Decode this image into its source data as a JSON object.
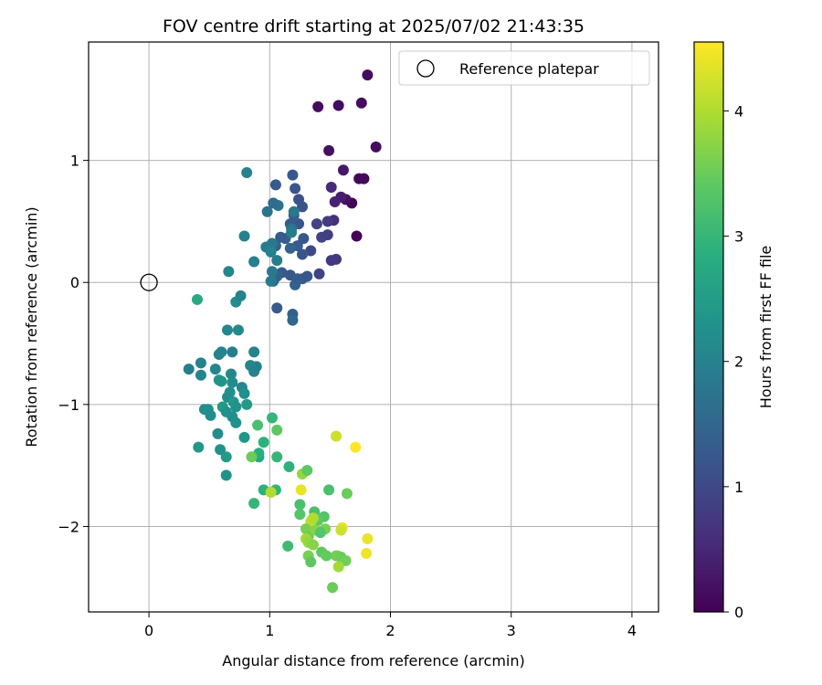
{
  "chart_data": {
    "type": "scatter",
    "title": "FOV centre drift starting at 2025/07/02 21:43:35",
    "xlabel": "Angular distance from reference (arcmin)",
    "ylabel": "Rotation from reference (arcmin)",
    "xlim": [
      -0.5,
      4.22
    ],
    "ylim": [
      -2.7,
      1.97
    ],
    "xticks": [
      0,
      1,
      2,
      3,
      4
    ],
    "yticks": [
      -2,
      -1,
      0,
      1
    ],
    "grid": true,
    "colormap": "viridis",
    "colorbar": {
      "label": "Hours from first FF file",
      "range": [
        0,
        4.55
      ],
      "ticks": [
        0,
        1,
        2,
        3,
        4
      ]
    },
    "legend": {
      "placement": "top-right",
      "entries": [
        {
          "label": "Reference platepar",
          "marker": "open-circle"
        }
      ]
    },
    "reference_point": {
      "x": 0,
      "y": 0
    },
    "series": [
      {
        "points": [
          [
            1.81,
            1.7,
            0.15
          ],
          [
            1.76,
            1.47,
            0.15
          ],
          [
            1.4,
            1.44,
            0.15
          ],
          [
            1.57,
            1.45,
            0.15
          ],
          [
            1.88,
            1.11,
            0.15
          ],
          [
            1.49,
            1.08,
            0.2
          ],
          [
            1.61,
            0.92,
            0.3
          ],
          [
            1.74,
            0.85,
            0.1
          ],
          [
            1.78,
            0.85,
            0.1
          ],
          [
            1.68,
            0.65,
            0.05
          ],
          [
            1.63,
            0.68,
            0.2
          ],
          [
            1.59,
            0.7,
            0.35
          ],
          [
            1.51,
            0.78,
            0.55
          ],
          [
            1.54,
            0.66,
            0.45
          ],
          [
            1.72,
            0.38,
            0.05
          ],
          [
            1.53,
            0.51,
            0.6
          ],
          [
            1.48,
            0.5,
            0.8
          ],
          [
            1.39,
            0.48,
            0.9
          ],
          [
            1.43,
            0.37,
            0.9
          ],
          [
            1.48,
            0.39,
            0.85
          ],
          [
            1.55,
            0.19,
            0.7
          ],
          [
            1.51,
            0.18,
            0.75
          ],
          [
            1.41,
            0.07,
            0.9
          ],
          [
            1.34,
            0.26,
            1.0
          ],
          [
            1.24,
            0.68,
            1.1
          ],
          [
            1.21,
            0.77,
            1.2
          ],
          [
            1.19,
            0.88,
            1.25
          ],
          [
            1.05,
            0.8,
            1.3
          ],
          [
            1.27,
            0.62,
            1.15
          ],
          [
            1.24,
            0.48,
            1.2
          ],
          [
            1.17,
            0.48,
            1.3
          ],
          [
            1.2,
            0.55,
            1.35
          ],
          [
            1.28,
            0.36,
            1.25
          ],
          [
            1.23,
            0.3,
            1.3
          ],
          [
            1.27,
            0.23,
            1.2
          ],
          [
            1.17,
            0.28,
            1.45
          ],
          [
            1.13,
            0.36,
            1.35
          ],
          [
            1.09,
            0.37,
            1.3
          ],
          [
            1.05,
            0.3,
            1.4
          ],
          [
            1.1,
            0.08,
            1.3
          ],
          [
            1.17,
            0.06,
            1.25
          ],
          [
            1.21,
            -0.02,
            1.4
          ],
          [
            1.23,
            0.03,
            1.35
          ],
          [
            1.27,
            0.03,
            1.3
          ],
          [
            1.31,
            0.05,
            1.2
          ],
          [
            1.06,
            0.05,
            1.4
          ],
          [
            1.03,
            0.01,
            1.5
          ],
          [
            1.06,
            -0.21,
            1.3
          ],
          [
            1.19,
            -0.26,
            1.4
          ],
          [
            1.19,
            -0.31,
            1.5
          ],
          [
            1.07,
            0.63,
            1.7
          ],
          [
            1.03,
            0.65,
            1.6
          ],
          [
            0.98,
            0.58,
            1.75
          ],
          [
            1.2,
            0.58,
            1.8
          ],
          [
            1.18,
            0.44,
            1.75
          ],
          [
            1.18,
            0.41,
            1.9
          ],
          [
            1.02,
            0.32,
            1.8
          ],
          [
            0.97,
            0.29,
            1.9
          ],
          [
            1.01,
            0.25,
            2.0
          ],
          [
            1.02,
            0.09,
            1.8
          ],
          [
            1.06,
            0.18,
            1.9
          ],
          [
            1.01,
            0.01,
            1.85
          ],
          [
            0.87,
            0.17,
            1.95
          ],
          [
            0.79,
            0.38,
            2.0
          ],
          [
            0.81,
            0.9,
            2.0
          ],
          [
            0.66,
            0.09,
            2.1
          ],
          [
            0.72,
            -0.16,
            2.2
          ],
          [
            0.76,
            -0.11,
            2.0
          ],
          [
            0.65,
            -0.39,
            2.1
          ],
          [
            0.74,
            -0.39,
            2.15
          ],
          [
            0.6,
            -0.57,
            2.05
          ],
          [
            0.58,
            -0.59,
            2.0
          ],
          [
            0.69,
            -0.57,
            1.9
          ],
          [
            0.87,
            -0.57,
            2.0
          ],
          [
            0.89,
            -0.69,
            1.95
          ],
          [
            0.84,
            -0.68,
            2.05
          ],
          [
            0.87,
            -0.73,
            2.0
          ],
          [
            0.33,
            -0.71,
            1.95
          ],
          [
            0.43,
            -0.66,
            2.0
          ],
          [
            0.43,
            -0.76,
            2.05
          ],
          [
            0.55,
            -0.71,
            2.1
          ],
          [
            0.68,
            -0.75,
            2.15
          ],
          [
            0.69,
            -0.82,
            2.2
          ],
          [
            0.77,
            -0.86,
            2.1
          ],
          [
            0.58,
            -0.8,
            2.4
          ],
          [
            0.6,
            -0.81,
            2.35
          ],
          [
            0.67,
            -0.9,
            2.3
          ],
          [
            0.79,
            -0.91,
            2.25
          ],
          [
            0.65,
            -0.94,
            2.2
          ],
          [
            0.7,
            -0.98,
            2.4
          ],
          [
            0.72,
            -1.02,
            2.3
          ],
          [
            0.61,
            -1.02,
            2.45
          ],
          [
            0.64,
            -1.06,
            2.3
          ],
          [
            0.46,
            -1.04,
            2.2
          ],
          [
            0.49,
            -1.04,
            2.25
          ],
          [
            0.51,
            -1.09,
            2.2
          ],
          [
            0.69,
            -1.1,
            2.25
          ],
          [
            0.72,
            -1.15,
            2.3
          ],
          [
            0.81,
            -1.0,
            2.45
          ],
          [
            0.57,
            -1.24,
            2.2
          ],
          [
            0.59,
            -1.37,
            2.3
          ],
          [
            0.79,
            -1.27,
            2.35
          ],
          [
            0.41,
            -1.35,
            2.4
          ],
          [
            0.64,
            -1.43,
            2.45
          ],
          [
            0.64,
            -1.58,
            2.3
          ],
          [
            0.4,
            -0.14,
            2.75
          ],
          [
            0.91,
            -1.43,
            2.7
          ],
          [
            0.91,
            -1.4,
            2.85
          ],
          [
            0.95,
            -1.31,
            2.9
          ],
          [
            0.9,
            -1.17,
            3.2
          ],
          [
            1.02,
            -1.11,
            3.0
          ],
          [
            1.06,
            -1.21,
            3.4
          ],
          [
            1.06,
            -1.43,
            3.0
          ],
          [
            1.16,
            -1.51,
            2.9
          ],
          [
            0.95,
            -1.7,
            2.9
          ],
          [
            0.87,
            -1.81,
            3.0
          ],
          [
            1.05,
            -1.7,
            2.95
          ],
          [
            0.85,
            -1.43,
            3.5
          ],
          [
            1.15,
            -2.16,
            3.1
          ],
          [
            1.01,
            -1.72,
            4.0
          ],
          [
            1.27,
            -1.57,
            3.8
          ],
          [
            1.31,
            -1.54,
            3.4
          ],
          [
            1.26,
            -1.7,
            4.4
          ],
          [
            1.25,
            -1.82,
            3.2
          ],
          [
            1.25,
            -1.9,
            3.3
          ],
          [
            1.37,
            -1.88,
            3.2
          ],
          [
            1.49,
            -1.7,
            3.2
          ],
          [
            1.45,
            -1.92,
            3.3
          ],
          [
            1.4,
            -1.95,
            3.4
          ],
          [
            1.34,
            -1.96,
            4.1
          ],
          [
            1.36,
            -1.93,
            4.0
          ],
          [
            1.3,
            -2.02,
            3.6
          ],
          [
            1.32,
            -2.08,
            3.5
          ],
          [
            1.38,
            -2.03,
            3.7
          ],
          [
            1.46,
            -2.02,
            3.6
          ],
          [
            1.42,
            -2.05,
            3.3
          ],
          [
            1.3,
            -2.1,
            3.9
          ],
          [
            1.32,
            -2.13,
            3.8
          ],
          [
            1.36,
            -2.15,
            3.7
          ],
          [
            1.43,
            -2.21,
            3.4
          ],
          [
            1.47,
            -2.24,
            3.45
          ],
          [
            1.32,
            -2.24,
            3.6
          ],
          [
            1.34,
            -2.29,
            3.4
          ],
          [
            1.55,
            -2.24,
            3.5
          ],
          [
            1.56,
            -2.24,
            3.6
          ],
          [
            1.59,
            -2.25,
            3.5
          ],
          [
            1.63,
            -2.28,
            3.55
          ],
          [
            1.57,
            -2.33,
            3.9
          ],
          [
            1.52,
            -2.5,
            3.5
          ],
          [
            1.55,
            -1.26,
            4.2
          ],
          [
            1.71,
            -1.35,
            4.55
          ],
          [
            1.64,
            -1.73,
            3.5
          ],
          [
            1.6,
            -2.01,
            4.4
          ],
          [
            1.59,
            -2.03,
            4.2
          ],
          [
            1.81,
            -2.1,
            4.4
          ],
          [
            1.8,
            -2.22,
            4.45
          ]
        ]
      }
    ]
  }
}
